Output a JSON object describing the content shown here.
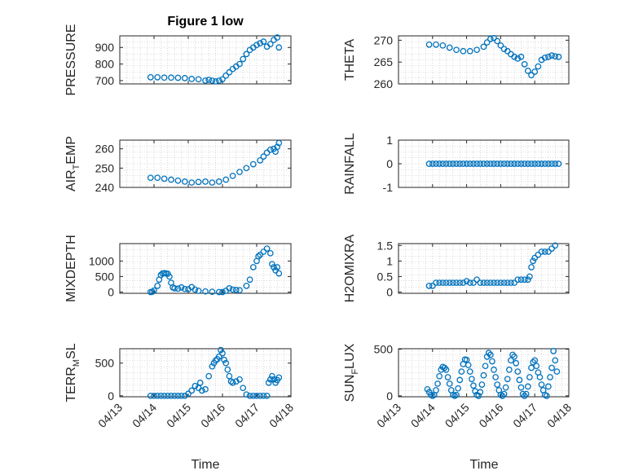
{
  "figure": {
    "title": "Figure 1 low",
    "xlabel": "Time"
  },
  "colors": {
    "marker": "#0072BD",
    "axis": "#262626",
    "grid": "#bdbdbd"
  },
  "chart_data": [
    {
      "type": "scatter",
      "id": "pressure",
      "title": "Figure 1 low",
      "ylabel": "PRESSURE",
      "ylabel_sub": "",
      "ylim": [
        680,
        970
      ],
      "yticks": [
        "700",
        "800",
        "900"
      ],
      "ytick_values": [
        700,
        800,
        900
      ],
      "xlim": [
        "04/13",
        "04/18"
      ],
      "xticks": [
        "04/13",
        "04/14",
        "04/15",
        "04/16",
        "04/17",
        "04/18"
      ],
      "grid": true,
      "x": [
        13.9,
        14.1,
        14.3,
        14.5,
        14.7,
        14.9,
        15.1,
        15.3,
        15.5,
        15.6,
        15.7,
        15.8,
        15.9,
        16.0,
        16.1,
        16.2,
        16.3,
        16.4,
        16.5,
        16.6,
        16.7,
        16.8,
        16.9,
        17.0,
        17.1,
        17.2,
        17.3,
        17.4,
        17.5,
        17.6,
        17.65
      ],
      "y": [
        720,
        720,
        718,
        718,
        717,
        715,
        710,
        708,
        700,
        705,
        700,
        695,
        700,
        708,
        730,
        750,
        770,
        785,
        800,
        830,
        860,
        885,
        900,
        915,
        925,
        935,
        905,
        920,
        945,
        960,
        900
      ]
    },
    {
      "type": "scatter",
      "id": "theta",
      "ylabel": "THETA",
      "ylabel_sub": "",
      "ylim": [
        260,
        271
      ],
      "yticks": [
        "260",
        "265",
        "270"
      ],
      "ytick_values": [
        260,
        265,
        270
      ],
      "xlim": [
        "04/13",
        "04/18"
      ],
      "xticks": [
        "04/13",
        "04/14",
        "04/15",
        "04/16",
        "04/17",
        "04/18"
      ],
      "grid": true,
      "x": [
        13.9,
        14.1,
        14.3,
        14.5,
        14.7,
        14.9,
        15.1,
        15.3,
        15.5,
        15.6,
        15.7,
        15.8,
        15.9,
        16.0,
        16.1,
        16.2,
        16.3,
        16.4,
        16.5,
        16.6,
        16.7,
        16.8,
        16.9,
        17.0,
        17.1,
        17.2,
        17.3,
        17.4,
        17.5,
        17.6,
        17.7
      ],
      "y": [
        269,
        269,
        268.8,
        268.3,
        267.8,
        267.5,
        267.5,
        267.8,
        268.5,
        269.5,
        270.3,
        270.5,
        269.8,
        268.8,
        268,
        267.5,
        266.8,
        266.2,
        265.8,
        266.2,
        264.5,
        263,
        262,
        262.8,
        264,
        265.5,
        266,
        266.2,
        266.5,
        266.3,
        266.2
      ]
    },
    {
      "type": "scatter",
      "id": "air_temp",
      "ylabel": "AIR",
      "ylabel_sub": "T",
      "ylabel_tail": "EMP",
      "ylim": [
        240,
        264.5
      ],
      "yticks": [
        "240",
        "250",
        "260"
      ],
      "ytick_values": [
        240,
        250,
        260
      ],
      "xlim": [
        "04/13",
        "04/18"
      ],
      "xticks": [
        "04/13",
        "04/14",
        "04/15",
        "04/16",
        "04/17",
        "04/18"
      ],
      "grid": true,
      "x": [
        13.9,
        14.1,
        14.3,
        14.5,
        14.7,
        14.9,
        15.1,
        15.3,
        15.5,
        15.7,
        15.9,
        16.1,
        16.3,
        16.5,
        16.7,
        16.9,
        17.1,
        17.2,
        17.3,
        17.4,
        17.5,
        17.55,
        17.6,
        17.65
      ],
      "y": [
        245,
        245,
        244.5,
        244,
        243.5,
        243,
        242.5,
        242.8,
        243,
        242.5,
        243,
        244,
        246,
        248,
        250,
        252,
        254,
        256,
        258,
        259.5,
        260,
        258.5,
        261,
        263
      ]
    },
    {
      "type": "scatter",
      "id": "rainfall",
      "ylabel": "RAINFALL",
      "ylabel_sub": "",
      "ylim": [
        -1,
        1
      ],
      "yticks": [
        "-1",
        "0",
        "1"
      ],
      "ytick_values": [
        -1,
        0,
        1
      ],
      "xlim": [
        "04/13",
        "04/18"
      ],
      "xticks": [
        "04/13",
        "04/14",
        "04/15",
        "04/16",
        "04/17",
        "04/18"
      ],
      "grid": true,
      "x": [
        13.9,
        14.0,
        14.1,
        14.2,
        14.3,
        14.4,
        14.5,
        14.6,
        14.7,
        14.8,
        14.9,
        15.0,
        15.1,
        15.2,
        15.3,
        15.4,
        15.5,
        15.6,
        15.7,
        15.8,
        15.9,
        16.0,
        16.1,
        16.2,
        16.3,
        16.4,
        16.5,
        16.6,
        16.7,
        16.8,
        16.9,
        17.0,
        17.1,
        17.2,
        17.3,
        17.4,
        17.5,
        17.6,
        17.7
      ],
      "y": [
        0,
        0,
        0,
        0,
        0,
        0,
        0,
        0,
        0,
        0,
        0,
        0,
        0,
        0,
        0,
        0,
        0,
        0,
        0,
        0,
        0,
        0,
        0,
        0,
        0,
        0,
        0,
        0,
        0,
        0,
        0,
        0,
        0,
        0,
        0,
        0,
        0,
        0,
        0
      ]
    },
    {
      "type": "scatter",
      "id": "mixdepth",
      "ylabel": "MIXDEPTH",
      "ylabel_sub": "",
      "ylim": [
        -40,
        1560
      ],
      "yticks": [
        "0",
        "500",
        "1000"
      ],
      "ytick_values": [
        0,
        500,
        1000
      ],
      "xlim": [
        "04/13",
        "04/18"
      ],
      "xticks": [
        "04/13",
        "04/14",
        "04/15",
        "04/16",
        "04/17",
        "04/18"
      ],
      "grid": true,
      "x": [
        13.9,
        13.95,
        14.0,
        14.1,
        14.15,
        14.2,
        14.25,
        14.3,
        14.35,
        14.4,
        14.45,
        14.5,
        14.55,
        14.6,
        14.7,
        14.8,
        14.9,
        15.0,
        15.1,
        15.2,
        15.3,
        15.5,
        15.7,
        15.9,
        16.0,
        16.1,
        16.2,
        16.3,
        16.4,
        16.5,
        16.7,
        16.8,
        16.9,
        17.0,
        17.05,
        17.1,
        17.2,
        17.3,
        17.4,
        17.45,
        17.5,
        17.55,
        17.6,
        17.65
      ],
      "y": [
        0,
        10,
        50,
        200,
        400,
        550,
        600,
        610,
        600,
        590,
        500,
        300,
        150,
        120,
        110,
        150,
        100,
        90,
        160,
        80,
        40,
        20,
        10,
        0,
        0,
        40,
        120,
        80,
        70,
        60,
        200,
        400,
        800,
        1000,
        1150,
        1200,
        1300,
        1400,
        1250,
        900,
        800,
        700,
        800,
        600
      ]
    },
    {
      "type": "scatter",
      "id": "h2omixra",
      "ylabel": "H2OMIXRA",
      "ylabel_sub": "",
      "ylim": [
        -0.04,
        1.56
      ],
      "yticks": [
        "0",
        "0.5",
        "1",
        "1.5"
      ],
      "ytick_values": [
        0,
        0.5,
        1,
        1.5
      ],
      "xlim": [
        "04/13",
        "04/18"
      ],
      "xticks": [
        "04/13",
        "04/14",
        "04/15",
        "04/16",
        "04/17",
        "04/18"
      ],
      "grid": true,
      "x": [
        13.9,
        14.0,
        14.1,
        14.2,
        14.3,
        14.4,
        14.5,
        14.6,
        14.7,
        14.8,
        14.9,
        15.0,
        15.1,
        15.2,
        15.3,
        15.4,
        15.5,
        15.6,
        15.7,
        15.8,
        15.9,
        16.0,
        16.1,
        16.2,
        16.3,
        16.4,
        16.5,
        16.6,
        16.7,
        16.8,
        16.85,
        16.9,
        16.95,
        17.0,
        17.1,
        17.2,
        17.3,
        17.4,
        17.5,
        17.6
      ],
      "y": [
        0.2,
        0.2,
        0.3,
        0.3,
        0.3,
        0.3,
        0.3,
        0.3,
        0.3,
        0.3,
        0.3,
        0.35,
        0.3,
        0.3,
        0.4,
        0.3,
        0.3,
        0.3,
        0.3,
        0.3,
        0.3,
        0.3,
        0.3,
        0.3,
        0.3,
        0.3,
        0.4,
        0.4,
        0.4,
        0.4,
        0.5,
        0.8,
        1.0,
        1.1,
        1.2,
        1.3,
        1.3,
        1.3,
        1.4,
        1.5
      ]
    },
    {
      "type": "scatter",
      "id": "terr_msl",
      "ylabel": "TERR",
      "ylabel_sub": "M",
      "ylabel_tail": "SL",
      "ylim": [
        -15,
        720
      ],
      "yticks": [
        "0",
        "500"
      ],
      "ytick_values": [
        0,
        500
      ],
      "xlim": [
        "04/13",
        "04/18"
      ],
      "xticks": [
        "04/13",
        "04/14",
        "04/15",
        "04/16",
        "04/17",
        "04/18"
      ],
      "grid": true,
      "x": [
        13.9,
        14.0,
        14.1,
        14.2,
        14.3,
        14.4,
        14.5,
        14.6,
        14.7,
        14.8,
        14.9,
        15.0,
        15.1,
        15.2,
        15.3,
        15.35,
        15.4,
        15.5,
        15.6,
        15.7,
        15.75,
        15.8,
        15.85,
        15.9,
        15.95,
        16.0,
        16.05,
        16.1,
        16.15,
        16.2,
        16.25,
        16.3,
        16.4,
        16.5,
        16.6,
        16.7,
        16.8,
        16.9,
        17.0,
        17.1,
        17.2,
        17.3,
        17.35,
        17.4,
        17.45,
        17.5,
        17.55,
        17.6,
        17.65
      ],
      "y": [
        0,
        0,
        0,
        0,
        0,
        0,
        0,
        0,
        0,
        0,
        0,
        30,
        80,
        150,
        120,
        200,
        80,
        100,
        300,
        450,
        500,
        540,
        560,
        600,
        700,
        650,
        550,
        500,
        400,
        300,
        220,
        200,
        220,
        250,
        120,
        20,
        0,
        0,
        0,
        0,
        0,
        0,
        200,
        250,
        300,
        250,
        200,
        240,
        280
      ]
    },
    {
      "type": "scatter",
      "id": "sun_flux",
      "ylabel": "SUN",
      "ylabel_sub": "F",
      "ylabel_tail": "LUX",
      "ylim": [
        -10,
        505
      ],
      "yticks": [
        "0",
        "500"
      ],
      "ytick_values": [
        0,
        500
      ],
      "xlim": [
        "04/13",
        "04/18"
      ],
      "xticks": [
        "04/13",
        "04/14",
        "04/15",
        "04/16",
        "04/17",
        "04/18"
      ],
      "grid": true,
      "x": [
        13.85,
        13.9,
        13.95,
        14.0,
        14.05,
        14.1,
        14.15,
        14.2,
        14.25,
        14.3,
        14.35,
        14.4,
        14.45,
        14.5,
        14.55,
        14.6,
        14.65,
        14.7,
        14.75,
        14.8,
        14.85,
        14.9,
        14.95,
        15.0,
        15.05,
        15.1,
        15.15,
        15.2,
        15.25,
        15.3,
        15.35,
        15.4,
        15.45,
        15.5,
        15.55,
        15.6,
        15.65,
        15.7,
        15.75,
        15.8,
        15.85,
        15.9,
        15.95,
        16.0,
        16.05,
        16.1,
        16.15,
        16.2,
        16.25,
        16.3,
        16.35,
        16.4,
        16.45,
        16.5,
        16.55,
        16.6,
        16.65,
        16.7,
        16.75,
        16.8,
        16.85,
        16.9,
        16.95,
        17.0,
        17.05,
        17.1,
        17.15,
        17.2,
        17.25,
        17.3,
        17.35,
        17.4,
        17.45,
        17.5,
        17.55,
        17.6,
        17.65
      ],
      "y": [
        70,
        40,
        10,
        0,
        10,
        60,
        130,
        210,
        280,
        310,
        300,
        280,
        200,
        130,
        60,
        10,
        0,
        10,
        80,
        170,
        260,
        340,
        390,
        385,
        330,
        260,
        180,
        110,
        50,
        10,
        0,
        40,
        120,
        220,
        320,
        420,
        460,
        440,
        370,
        280,
        200,
        120,
        60,
        10,
        0,
        20,
        90,
        180,
        280,
        380,
        440,
        420,
        350,
        260,
        170,
        90,
        20,
        0,
        20,
        100,
        200,
        300,
        360,
        380,
        320,
        250,
        200,
        120,
        60,
        10,
        0,
        100,
        200,
        300,
        480,
        380,
        260
      ]
    }
  ]
}
